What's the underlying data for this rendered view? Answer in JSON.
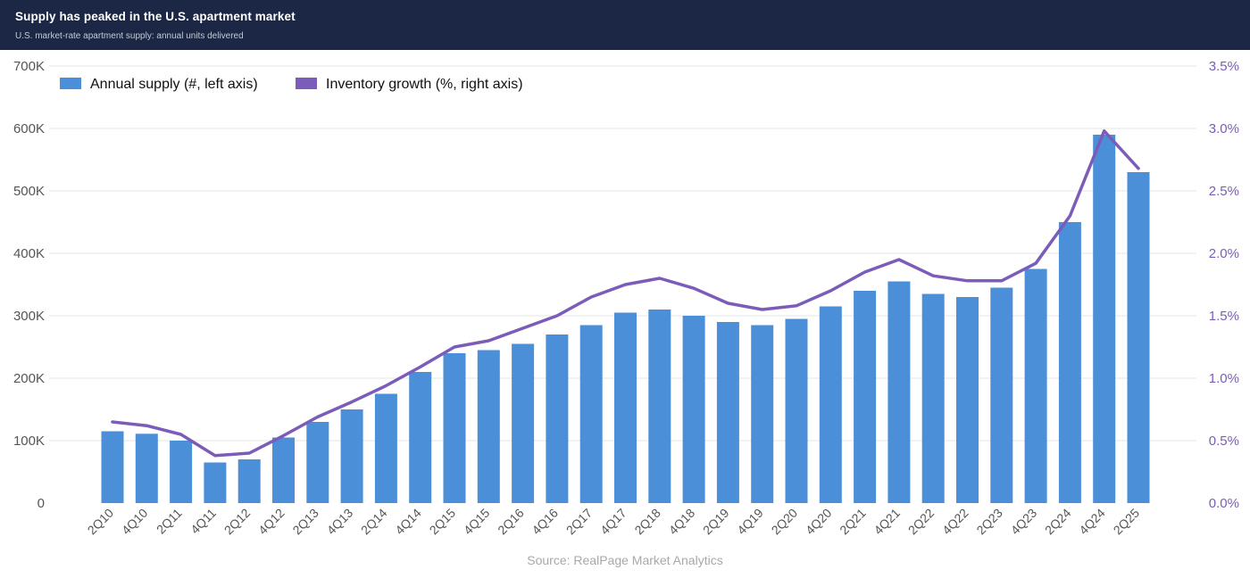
{
  "header": {
    "title": "Supply has peaked in the U.S. apartment market",
    "subtitle": "U.S. market-rate apartment supply: annual units delivered"
  },
  "source": "Source: RealPage Market Analytics",
  "colors": {
    "header_bg": "#1b2745",
    "bar": "#4a8fd8",
    "line": "#7b5cb8",
    "left_axis_text": "#555555",
    "right_axis_text": "#7b5cb8",
    "grid": "#e6e6e6"
  },
  "chart_data": {
    "type": "bar",
    "categories": [
      "2Q10",
      "4Q10",
      "2Q11",
      "4Q11",
      "2Q12",
      "4Q12",
      "2Q13",
      "4Q13",
      "2Q14",
      "4Q14",
      "2Q15",
      "4Q15",
      "2Q16",
      "4Q16",
      "2Q17",
      "4Q17",
      "2Q18",
      "4Q18",
      "2Q19",
      "4Q19",
      "2Q20",
      "4Q20",
      "2Q21",
      "4Q21",
      "2Q22",
      "4Q22",
      "2Q23",
      "4Q23",
      "2Q24",
      "4Q24",
      "2Q25"
    ],
    "series": [
      {
        "name": "Annual supply (#, left axis)",
        "type": "bar",
        "axis": "left",
        "values": [
          115000,
          111000,
          100000,
          65000,
          70000,
          105000,
          130000,
          150000,
          175000,
          210000,
          240000,
          245000,
          255000,
          270000,
          285000,
          305000,
          310000,
          300000,
          290000,
          285000,
          295000,
          315000,
          340000,
          355000,
          335000,
          330000,
          345000,
          375000,
          450000,
          590000,
          530000
        ]
      },
      {
        "name": "Inventory growth (%, right axis)",
        "type": "line",
        "axis": "right",
        "values": [
          0.65,
          0.62,
          0.55,
          0.38,
          0.4,
          0.54,
          0.69,
          0.81,
          0.94,
          1.09,
          1.25,
          1.3,
          1.4,
          1.5,
          1.65,
          1.75,
          1.8,
          1.72,
          1.6,
          1.55,
          1.58,
          1.7,
          1.85,
          1.95,
          1.82,
          1.78,
          1.78,
          1.92,
          2.3,
          2.98,
          2.68
        ]
      }
    ],
    "left_axis": {
      "ylim": [
        0,
        700000
      ],
      "ticks": [
        0,
        100000,
        200000,
        300000,
        400000,
        500000,
        600000,
        700000
      ],
      "tick_labels": [
        "0",
        "100K",
        "200K",
        "300K",
        "400K",
        "500K",
        "600K",
        "700K"
      ]
    },
    "right_axis": {
      "ylim": [
        0,
        3.5
      ],
      "ticks": [
        0,
        0.5,
        1.0,
        1.5,
        2.0,
        2.5,
        3.0,
        3.5
      ],
      "tick_labels": [
        "0.0%",
        "0.5%",
        "1.0%",
        "1.5%",
        "2.0%",
        "2.5%",
        "3.0%",
        "3.5%"
      ]
    },
    "grid": true,
    "legend_position": "top-left"
  }
}
